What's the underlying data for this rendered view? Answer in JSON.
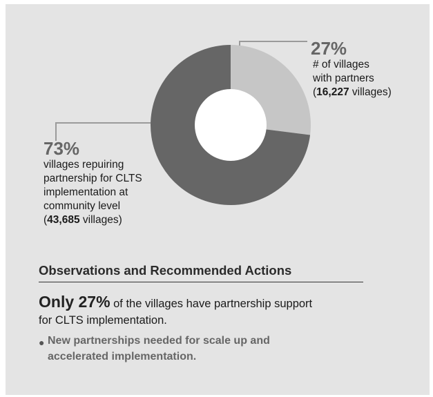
{
  "chart_data": {
    "type": "pie",
    "categories": [
      "villages with partners",
      "villages repuiring partnership"
    ],
    "values": [
      27,
      73
    ],
    "colors": [
      "#c6c6c6",
      "#666666"
    ]
  },
  "labels": {
    "right": {
      "pct": "27%",
      "line1": "# of villages",
      "line2": "with partners",
      "open": "(",
      "count": "16,227",
      "close": " villages)"
    },
    "left": {
      "pct": "73%",
      "line1": "villages repuiring",
      "line2": "partnership for CLTS",
      "line3": "implementation at",
      "line4": "community level",
      "open": "(",
      "count": "43,685",
      "close": " villages)"
    }
  },
  "observations": {
    "heading": "Observations and Recommended Actions",
    "highlight": "Only 27%",
    "text1": " of the villages have partnership support",
    "text2": "for CLTS implementation.",
    "bullets": [
      "New partnerships needed for scale up and accelerated implementation."
    ]
  }
}
